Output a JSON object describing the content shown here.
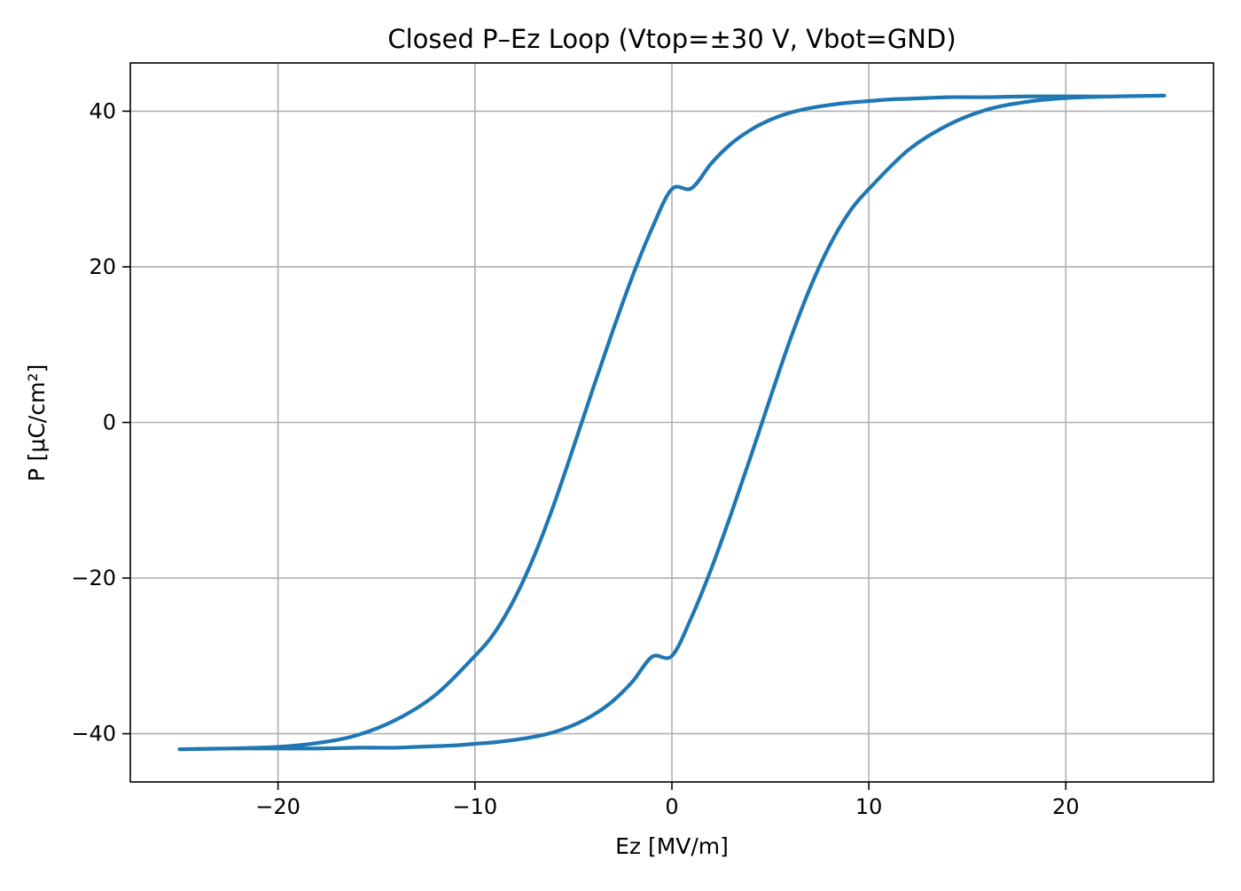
{
  "chart_data": {
    "type": "line",
    "title": "Closed P–Ez Loop (Vtop=±30 V, Vbot=GND)",
    "xlabel": "Ez [MV/m]",
    "ylabel": "P [μC/cm²]",
    "xlim": [
      -27.5,
      27.5
    ],
    "ylim": [
      -46.2,
      46.2
    ],
    "grid": true,
    "line_color": "#1f77b4",
    "grid_color": "#b0b0b0",
    "x_ticks": [
      {
        "value": -20,
        "label": "−20"
      },
      {
        "value": -10,
        "label": "−10"
      },
      {
        "value": 0,
        "label": "0"
      },
      {
        "value": 10,
        "label": "10"
      },
      {
        "value": 20,
        "label": "20"
      }
    ],
    "y_ticks": [
      {
        "value": -40,
        "label": "−40"
      },
      {
        "value": -20,
        "label": "−20"
      },
      {
        "value": 0,
        "label": "0"
      },
      {
        "value": 20,
        "label": "20"
      },
      {
        "value": 40,
        "label": "40"
      }
    ],
    "series": [
      {
        "x": [
          -25,
          -22.5,
          -20,
          -18,
          -16,
          -15,
          -14,
          -13,
          -12,
          -11,
          -10,
          -9,
          -8,
          -7,
          -6,
          -5,
          -4,
          -3,
          -2,
          -1,
          0,
          1,
          2,
          3,
          4,
          5,
          6,
          7,
          8,
          9,
          10,
          12,
          14,
          16,
          18,
          20,
          22.5,
          25,
          22.5,
          20,
          18,
          16,
          15,
          14,
          13,
          12,
          11,
          10,
          9,
          8,
          7,
          6,
          5,
          4,
          3,
          2,
          1,
          0,
          -1,
          -2,
          -3,
          -4,
          -5,
          -6,
          -7,
          -8,
          -9,
          -10,
          -12,
          -14,
          -16,
          -18,
          -20,
          -22.5,
          -25
        ],
        "y": [
          -42.0,
          -41.9,
          -41.9,
          -41.9,
          -41.8,
          -41.8,
          -41.8,
          -41.7,
          -41.6,
          -41.5,
          -41.3,
          -41.1,
          -40.8,
          -40.4,
          -39.8,
          -38.9,
          -37.6,
          -35.8,
          -33.3,
          -30.1,
          -30.0,
          -25.0,
          -18.8,
          -11.8,
          -4.4,
          3.2,
          10.6,
          17.2,
          22.7,
          27.0,
          30.0,
          35.0,
          38.2,
          40.2,
          41.2,
          41.7,
          41.9,
          42.0,
          41.9,
          41.9,
          41.9,
          41.8,
          41.8,
          41.8,
          41.7,
          41.6,
          41.5,
          41.3,
          41.1,
          40.8,
          40.4,
          39.8,
          38.9,
          37.6,
          35.8,
          33.3,
          30.1,
          30.0,
          25.0,
          18.8,
          11.8,
          4.4,
          -3.2,
          -10.6,
          -17.2,
          -22.7,
          -27.0,
          -30.0,
          -35.0,
          -38.2,
          -40.2,
          -41.2,
          -41.7,
          -41.9,
          -42.0
        ]
      }
    ]
  }
}
